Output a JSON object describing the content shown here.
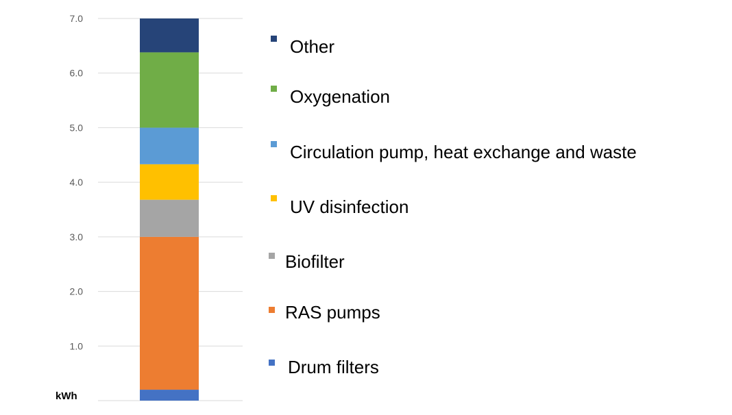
{
  "chart_data": {
    "type": "bar",
    "stacked": true,
    "title": "",
    "xlabel": "",
    "ylabel": "kWh",
    "ylim": [
      0,
      7
    ],
    "yticks": [
      1,
      2,
      3,
      4,
      5,
      6,
      7
    ],
    "ytick_labels": [
      "1.0",
      "2.0",
      "3.0",
      "4.0",
      "5.0",
      "6.0",
      "7.0"
    ],
    "grid": true,
    "legend_position": "right",
    "categories": [
      ""
    ],
    "series": [
      {
        "name": "Drum filters",
        "values": [
          0.2
        ],
        "color": "#4472C4"
      },
      {
        "name": "RAS pumps",
        "values": [
          2.8
        ],
        "color": "#ED7D31"
      },
      {
        "name": "Biofilter",
        "values": [
          0.68
        ],
        "color": "#A5A5A5"
      },
      {
        "name": "UV disinfection",
        "values": [
          0.65
        ],
        "color": "#FFC000"
      },
      {
        "name": "Circulation pump, heat exchange and waste",
        "values": [
          0.67
        ],
        "color": "#5B9BD5"
      },
      {
        "name": "Oxygenation",
        "values": [
          1.38
        ],
        "color": "#70AD47"
      },
      {
        "name": "Other",
        "values": [
          0.62
        ],
        "color": "#264478"
      }
    ],
    "legend_order": [
      "Other",
      "Oxygenation",
      "Circulation pump, heat exchange and waste",
      "UV disinfection",
      "Biofilter",
      "RAS pumps",
      "Drum filters"
    ]
  }
}
